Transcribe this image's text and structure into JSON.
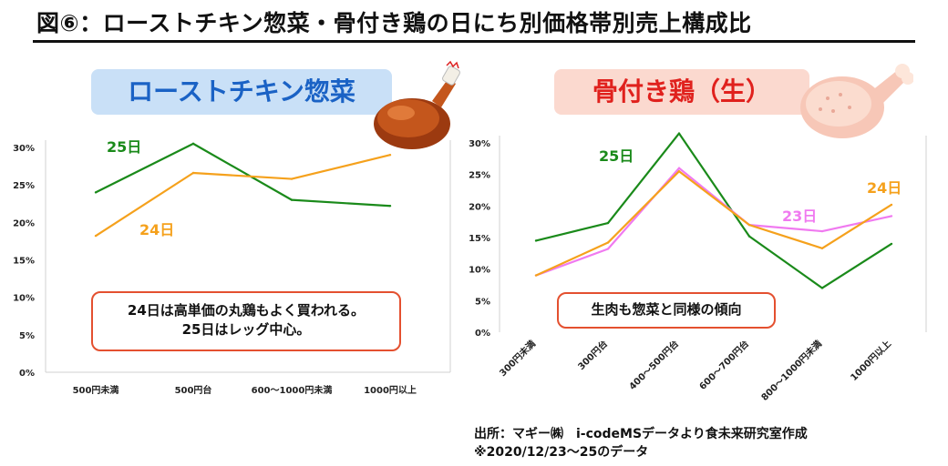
{
  "title": "図⑥：ローストチキン惣菜・骨付き鶏の日にち別価格帯別売上構成比",
  "colors": {
    "day25": "#1a8a1a",
    "day24": "#f5a11c",
    "day23": "#f07af0",
    "grid": "#d9d9d9",
    "callout_border": "#e4502f"
  },
  "left": {
    "label": "ローストチキン惣菜",
    "callout": [
      "24日は高単価の丸鶏もよく買われる。",
      "25日はレッグ中心。"
    ]
  },
  "right": {
    "label": "骨付き鶏（生）",
    "callout": [
      "生肉も惣菜と同様の傾向"
    ]
  },
  "chart_data": [
    {
      "type": "line",
      "title": "ローストチキン惣菜",
      "categories": [
        "500円未満",
        "500円台",
        "600～1000円未満",
        "1000円以上"
      ],
      "ylim": [
        0,
        30
      ],
      "yticks": [
        "0%",
        "5%",
        "10%",
        "15%",
        "20%",
        "25%",
        "30%"
      ],
      "series": [
        {
          "name": "25日",
          "color": "#1a8a1a",
          "values": [
            24.0,
            30.5,
            23.0,
            22.2
          ]
        },
        {
          "name": "24日",
          "color": "#f5a11c",
          "values": [
            18.2,
            26.6,
            25.8,
            29.0
          ]
        }
      ]
    },
    {
      "type": "line",
      "title": "骨付き鶏（生）",
      "categories": [
        "300円未満",
        "300円台",
        "400～500円台",
        "600～700円台",
        "800～1000円未満",
        "1000円以上"
      ],
      "ylim": [
        0,
        30
      ],
      "yticks": [
        "0%",
        "5%",
        "10%",
        "15%",
        "20%",
        "25%",
        "30%"
      ],
      "series": [
        {
          "name": "25日",
          "color": "#1a8a1a",
          "values": [
            14.5,
            17.3,
            31.5,
            15.2,
            7.0,
            14.0
          ]
        },
        {
          "name": "23日",
          "color": "#f07af0",
          "values": [
            9.0,
            13.2,
            26.0,
            17.0,
            16.0,
            18.4
          ]
        },
        {
          "name": "24日",
          "color": "#f5a11c",
          "values": [
            9.0,
            14.2,
            25.5,
            17.0,
            13.3,
            20.2
          ]
        }
      ]
    }
  ],
  "source": {
    "line1": "出所：マギー㈱　i-codeMSデータより食未来研究室作成",
    "line2": "※2020/12/23～25のデータ"
  }
}
